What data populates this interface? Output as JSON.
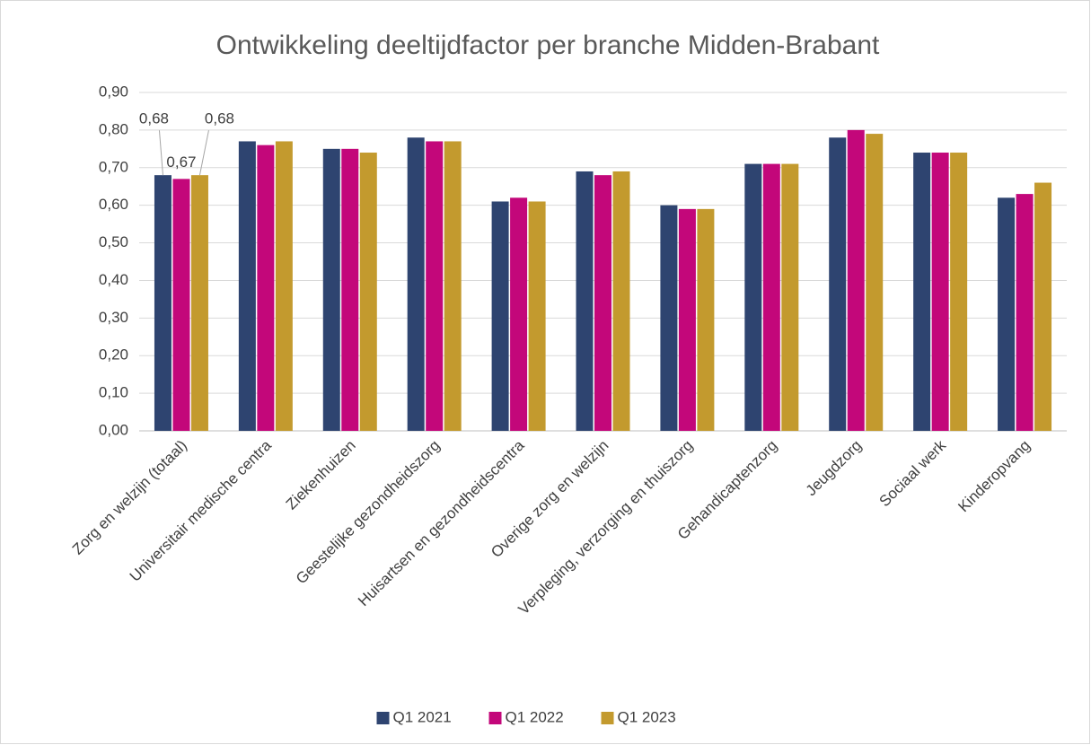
{
  "chart_data": {
    "type": "bar",
    "title": "Ontwikkeling deeltijdfactor per branche Midden-Brabant",
    "categories": [
      "Zorg en welzijn (totaal)",
      "Universitair medische centra",
      "Ziekenhuizen",
      "Geestelijke gezondheidszorg",
      "Huisartsen en gezondheidscentra",
      "Overige zorg en welzijn",
      "Verpleging, verzorging en thuiszorg",
      "Gehandicaptenzorg",
      "Jeugdzorg",
      "Sociaal werk",
      "Kinderopvang"
    ],
    "series": [
      {
        "name": "Q1 2021",
        "color": "#2e4470",
        "values": [
          0.68,
          0.77,
          0.75,
          0.78,
          0.61,
          0.69,
          0.6,
          0.71,
          0.78,
          0.74,
          0.62
        ],
        "value_labels": [
          "0,68",
          null,
          null,
          null,
          null,
          null,
          null,
          null,
          null,
          null,
          null
        ]
      },
      {
        "name": "Q1 2022",
        "color": "#c3077a",
        "values": [
          0.67,
          0.76,
          0.75,
          0.77,
          0.62,
          0.68,
          0.59,
          0.71,
          0.8,
          0.74,
          0.63
        ],
        "value_labels": [
          "0,67",
          null,
          null,
          null,
          null,
          null,
          null,
          null,
          null,
          null,
          null
        ]
      },
      {
        "name": "Q1 2023",
        "color": "#c39a2e",
        "values": [
          0.68,
          0.77,
          0.74,
          0.77,
          0.61,
          0.69,
          0.59,
          0.71,
          0.79,
          0.74,
          0.66
        ],
        "value_labels": [
          "0,68",
          null,
          null,
          null,
          null,
          null,
          null,
          null,
          null,
          null,
          null
        ]
      }
    ],
    "ylim": [
      0,
      0.9
    ],
    "yticks": [
      {
        "value": 0,
        "label": "0,00"
      },
      {
        "value": 0.1,
        "label": "0,10"
      },
      {
        "value": 0.2,
        "label": "0,20"
      },
      {
        "value": 0.3,
        "label": "0,30"
      },
      {
        "value": 0.4,
        "label": "0,40"
      },
      {
        "value": 0.5,
        "label": "0,50"
      },
      {
        "value": 0.6,
        "label": "0,60"
      },
      {
        "value": 0.7,
        "label": "0,70"
      },
      {
        "value": 0.8,
        "label": "0,80"
      },
      {
        "value": 0.9,
        "label": "0,90"
      }
    ],
    "grid": true,
    "legend": "bottom"
  }
}
